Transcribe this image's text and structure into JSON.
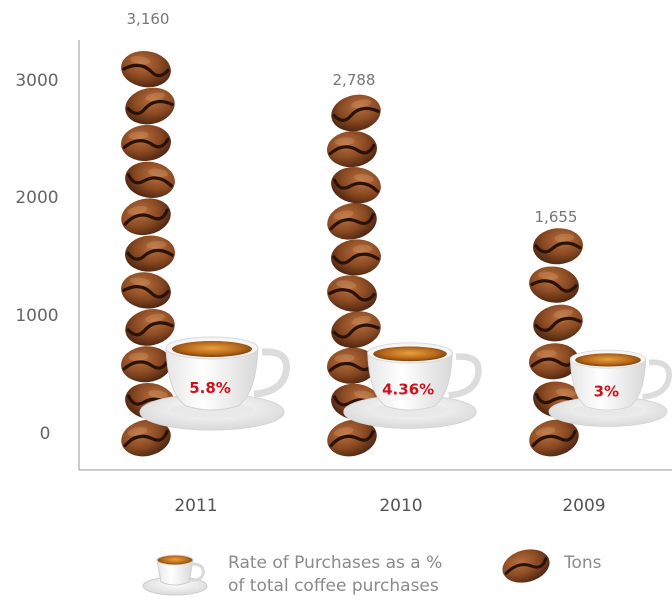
{
  "chart_data": {
    "type": "bar",
    "categories": [
      "2011",
      "2010",
      "2009"
    ],
    "series": [
      {
        "values": [
          3160,
          2788,
          1655
        ]
      }
    ],
    "value_labels": [
      "3,160",
      "2,788",
      "1,655"
    ],
    "rate_labels": [
      "5.8%",
      "4.36%",
      "3%"
    ],
    "rates": [
      5.8,
      4.36,
      3
    ],
    "yticks": [
      "0",
      "1000",
      "2000",
      "3000"
    ],
    "ylim": [
      0,
      3500
    ],
    "grid": false,
    "legend": {
      "position": "bottom",
      "items": [
        {
          "icon": "coffee-cup-icon",
          "line1": "Rate of Purchases as a %",
          "line2": "of total coffee purchases"
        },
        {
          "icon": "coffee-bean-icon",
          "line1": "Tons"
        }
      ]
    },
    "colors": {
      "bean_dark": "#4a2412",
      "bean_mid": "#8b4a22",
      "bean_light": "#b87040",
      "percent_text": "#d0101b",
      "axis": "#999999"
    }
  }
}
